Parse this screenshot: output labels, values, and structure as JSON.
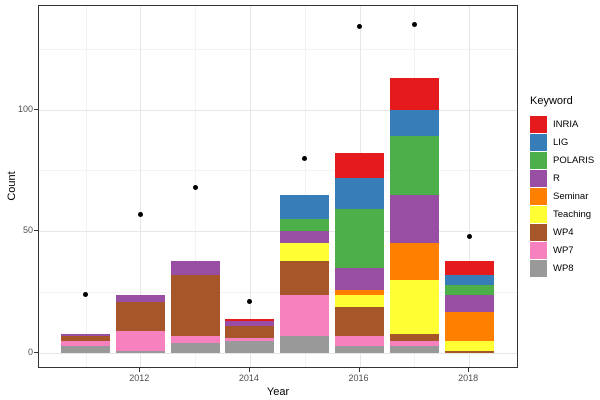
{
  "figure": {
    "xlabel": "Year",
    "ylabel": "Count",
    "legend_title": "Keyword"
  },
  "chart_data": {
    "type": "bar",
    "subtype": "stacked-bars-with-points",
    "title": "",
    "xlabel": "Year",
    "ylabel": "Count",
    "categories": [
      "2011",
      "2012",
      "2013",
      "2014",
      "2015",
      "2016",
      "2017",
      "2018"
    ],
    "series": [
      {
        "name": "INRIA",
        "color": "#E41A1C",
        "values": [
          0,
          0,
          0,
          1,
          0,
          10,
          13,
          6
        ]
      },
      {
        "name": "LIG",
        "color": "#377EB8",
        "values": [
          0,
          0,
          0,
          0,
          10,
          13,
          11,
          4
        ]
      },
      {
        "name": "POLARIS",
        "color": "#4DAF4A",
        "values": [
          0,
          0,
          0,
          0,
          5,
          24,
          24,
          4
        ]
      },
      {
        "name": "R",
        "color": "#984EA3",
        "values": [
          1,
          3,
          6,
          2,
          5,
          9,
          20,
          7
        ]
      },
      {
        "name": "Seminar",
        "color": "#FF7F00",
        "values": [
          0,
          0,
          0,
          0,
          0,
          2,
          15,
          12
        ]
      },
      {
        "name": "Teaching",
        "color": "#FFFF33",
        "values": [
          0,
          0,
          0,
          0,
          7,
          5,
          22,
          4
        ]
      },
      {
        "name": "WP4",
        "color": "#A65628",
        "values": [
          2,
          12,
          25,
          5,
          14,
          12,
          3,
          1
        ]
      },
      {
        "name": "WP7",
        "color": "#F781BF",
        "values": [
          2,
          8,
          3,
          1,
          17,
          4,
          2,
          0
        ]
      },
      {
        "name": "WP8",
        "color": "#999999",
        "values": [
          3,
          1,
          4,
          5,
          7,
          3,
          3,
          0
        ]
      }
    ],
    "stack_order_bottom_to_top": [
      "WP8",
      "WP7",
      "WP4",
      "Teaching",
      "Seminar",
      "R",
      "POLARIS",
      "LIG",
      "INRIA"
    ],
    "bar_totals": [
      8,
      24,
      38,
      14,
      65,
      82,
      113,
      38
    ],
    "points": {
      "name": "yearly-total-points",
      "color": "#000000",
      "values": [
        24,
        57,
        68,
        21,
        80,
        134,
        135,
        48
      ]
    },
    "y_ticks": [
      {
        "label": "0",
        "value": 0
      },
      {
        "label": "50",
        "value": 50
      },
      {
        "label": "100",
        "value": 100
      }
    ],
    "y_minor_values": [
      25,
      75,
      125
    ],
    "x_ticks": [
      {
        "label": "2012",
        "index": 1
      },
      {
        "label": "2014",
        "index": 3
      },
      {
        "label": "2016",
        "index": 5
      },
      {
        "label": "2018",
        "index": 7
      }
    ],
    "x_minor_indices": [
      0,
      2,
      4,
      6
    ],
    "ylim": [
      -7,
      142
    ],
    "grid": true,
    "legend_position": "right",
    "colors": {
      "background": "#FFFFFF",
      "panel_border": "#333333",
      "grid_major": "#E7E7E7",
      "grid_minor": "#F3F3F3",
      "tick_text": "#4D4D4D"
    }
  }
}
